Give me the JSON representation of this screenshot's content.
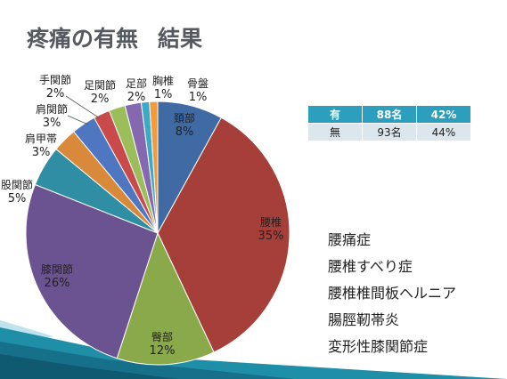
{
  "slide": {
    "title": "疼痛の有無",
    "subtitle": "結果"
  },
  "results_table": {
    "header": [
      "有",
      "88名",
      "42%"
    ],
    "row": [
      "無",
      "93名",
      "44%"
    ]
  },
  "diagnoses": [
    "腰痛症",
    "腰椎すべり症",
    "腰椎椎間板ヘルニア",
    "腸脛靭帯炎",
    "変形性膝関節症"
  ],
  "colors": {
    "title": "#555a60",
    "table_header": "#2c9fbf",
    "table_body": "#dbe7ec",
    "decor_teal": "#1f8fa8"
  },
  "chart_data": {
    "type": "pie",
    "title": "",
    "slices": [
      {
        "label": "頚部",
        "value": 8,
        "display": "8%",
        "color": "#3f6aa3"
      },
      {
        "label": "腰椎",
        "value": 35,
        "display": "35%",
        "color": "#a63f3a"
      },
      {
        "label": "臀部",
        "value": 12,
        "display": "12%",
        "color": "#8aa94a"
      },
      {
        "label": "膝関節",
        "value": 26,
        "display": "26%",
        "color": "#6b5290"
      },
      {
        "label": "股関節",
        "value": 5,
        "display": "5%",
        "color": "#2f8ea3"
      },
      {
        "label": "肩甲帯",
        "value": 3,
        "display": "3%",
        "color": "#d9893a"
      },
      {
        "label": "肩関節",
        "value": 3,
        "display": "3%",
        "color": "#4f76c0"
      },
      {
        "label": "手関節",
        "value": 2,
        "display": "2%",
        "color": "#c94a4a"
      },
      {
        "label": "足関節",
        "value": 2,
        "display": "2%",
        "color": "#9bbd5a"
      },
      {
        "label": "足部",
        "value": 2,
        "display": "2%",
        "color": "#8668b0"
      },
      {
        "label": "胸椎",
        "value": 1,
        "display": "1%",
        "color": "#3aabc6"
      },
      {
        "label": "骨盤",
        "value": 1,
        "display": "1%",
        "color": "#f39a3c"
      }
    ]
  }
}
